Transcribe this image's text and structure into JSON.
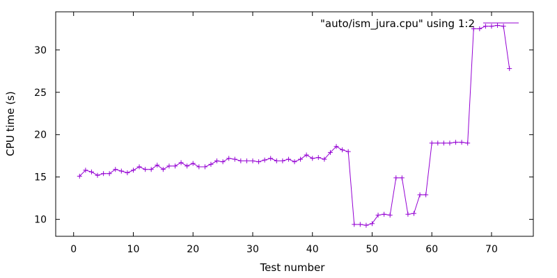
{
  "chart_data": {
    "type": "line",
    "xlabel": "Test number",
    "ylabel": "CPU time (s)",
    "xlim": [
      -3,
      77
    ],
    "ylim": [
      8,
      34.5
    ],
    "xticks": [
      0,
      10,
      20,
      30,
      40,
      50,
      60,
      70
    ],
    "yticks": [
      10,
      15,
      20,
      25,
      30
    ],
    "grid": false,
    "legend_position": "top-right",
    "series": [
      {
        "name": "\"auto/ism_jura.cpu\" using 1:2",
        "color": "#9400d3",
        "marker": "plus",
        "x": [
          1,
          2,
          3,
          4,
          5,
          6,
          7,
          8,
          9,
          10,
          11,
          12,
          13,
          14,
          15,
          16,
          17,
          18,
          19,
          20,
          21,
          22,
          23,
          24,
          25,
          26,
          27,
          28,
          29,
          30,
          31,
          32,
          33,
          34,
          35,
          36,
          37,
          38,
          39,
          40,
          41,
          42,
          43,
          44,
          45,
          46,
          47,
          48,
          49,
          50,
          51,
          52,
          53,
          54,
          55,
          56,
          57,
          58,
          59,
          60,
          61,
          62,
          63,
          64,
          65,
          66,
          67,
          68,
          69,
          70,
          71,
          72,
          73
        ],
        "y": [
          15.1,
          15.8,
          15.6,
          15.2,
          15.4,
          15.4,
          15.9,
          15.7,
          15.5,
          15.8,
          16.2,
          15.9,
          15.9,
          16.4,
          15.9,
          16.3,
          16.3,
          16.7,
          16.3,
          16.6,
          16.2,
          16.2,
          16.5,
          16.9,
          16.8,
          17.2,
          17.1,
          16.9,
          16.9,
          16.9,
          16.8,
          17.0,
          17.2,
          16.9,
          16.9,
          17.1,
          16.8,
          17.1,
          17.6,
          17.2,
          17.3,
          17.1,
          17.9,
          18.6,
          18.2,
          18.0,
          9.4,
          9.4,
          9.3,
          9.5,
          10.5,
          10.6,
          10.5,
          14.9,
          14.9,
          10.6,
          10.7,
          12.9,
          12.9,
          19.0,
          19.0,
          19.0,
          19.0,
          19.1,
          19.1,
          19.0,
          32.5,
          32.5,
          32.8,
          32.8,
          32.9,
          32.8,
          27.8
        ]
      }
    ]
  }
}
